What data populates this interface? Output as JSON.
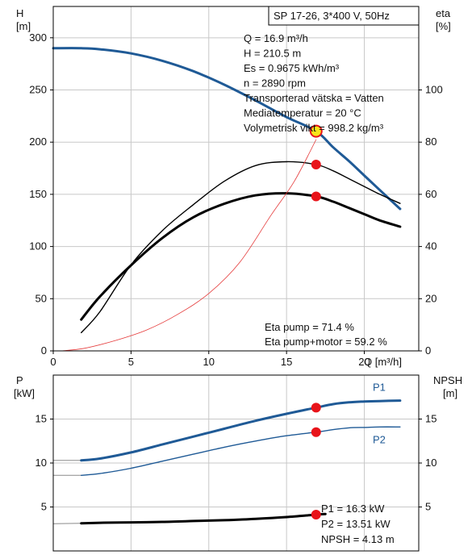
{
  "chart_data": [
    {
      "id": "head_efficiency",
      "type": "line",
      "title": "SP 17-26, 3*400 V, 50Hz",
      "xlabel": "Q [m³/h]",
      "ylabel_left": "H",
      "ylabel_left_unit": "[m]",
      "ylabel_right": "eta",
      "ylabel_right_unit": "[%]",
      "xlim": [
        0,
        23.5
      ],
      "ylim_left": [
        0,
        330
      ],
      "ylim_right": [
        0,
        132
      ],
      "x_ticks": [
        0,
        5,
        10,
        15,
        20
      ],
      "y_left_ticks": [
        0,
        50,
        100,
        150,
        200,
        250,
        300
      ],
      "y_right_ticks": [
        0,
        20,
        40,
        60,
        80,
        100
      ],
      "grid": true,
      "series": [
        {
          "axis": "left",
          "color": "#1f5a96",
          "width": 3,
          "x": [
            0,
            1.8,
            3,
            5,
            7,
            9,
            11,
            13,
            15,
            16.9,
            18,
            19,
            20,
            21,
            22.3
          ],
          "values": [
            290,
            290,
            289,
            285,
            278,
            268,
            255,
            240,
            224,
            210.5,
            195,
            182,
            168,
            154,
            136
          ]
        },
        {
          "axis": "right",
          "color": "#000000",
          "width": 1.4,
          "x": [
            1.8,
            3,
            5,
            7,
            9,
            11,
            13,
            15,
            16.9,
            18,
            19,
            20,
            21,
            22.3
          ],
          "values": [
            7,
            15,
            33,
            46,
            56,
            65,
            71,
            72.5,
            71.4,
            69,
            66,
            63,
            60,
            56.5
          ]
        },
        {
          "axis": "left",
          "color": "#000000",
          "width": 3,
          "x": [
            1.8,
            3,
            5,
            7,
            9,
            11,
            13,
            15,
            16.9,
            18,
            19,
            20,
            21,
            22.3
          ],
          "values": [
            30,
            52,
            82,
            108,
            128,
            141,
            149,
            151,
            148,
            143,
            137,
            131,
            125,
            119
          ]
        },
        {
          "axis": "right",
          "color": "#e53b3b",
          "width": 0.8,
          "x": [
            0.5,
            2,
            4,
            6,
            8,
            10,
            12,
            14,
            15.5,
            16.9
          ],
          "values": [
            0,
            1,
            4,
            8,
            14,
            22,
            34,
            52,
            65,
            81
          ]
        }
      ],
      "operating_points": [
        {
          "x": 16.9,
          "axis": "left",
          "value": 210.5,
          "highlight": true
        },
        {
          "x": 16.9,
          "axis": "right",
          "value": 71.4
        },
        {
          "x": 16.9,
          "axis": "left",
          "value": 148
        }
      ]
    },
    {
      "id": "power_npsh",
      "type": "line",
      "xlim": [
        0,
        23.5
      ],
      "ylabel_left": "P",
      "ylabel_left_unit": "[kW]",
      "ylabel_right": "NPSH",
      "ylabel_right_unit": "[m]",
      "ylim_left": [
        0,
        20
      ],
      "ylim_right": [
        0,
        20
      ],
      "y_left_ticks": [
        5,
        10,
        15
      ],
      "y_right_ticks": [
        5,
        10,
        15
      ],
      "grid": true,
      "series": [
        {
          "name": "P1",
          "axis": "left",
          "color": "#1f5a96",
          "width": 3,
          "x": [
            0,
            1.8,
            3,
            5,
            7,
            9,
            11,
            13,
            15,
            16.9,
            18,
            19,
            20,
            21,
            22.3
          ],
          "values": [
            10.3,
            10.3,
            10.5,
            11.2,
            12.1,
            13.0,
            13.9,
            14.8,
            15.6,
            16.3,
            16.7,
            16.9,
            17.0,
            17.05,
            17.1
          ]
        },
        {
          "name": "P2",
          "axis": "left",
          "color": "#1f5a96",
          "width": 1.4,
          "x": [
            0,
            1.8,
            3,
            5,
            7,
            9,
            11,
            13,
            15,
            16.9,
            18,
            19,
            20,
            21,
            22.3
          ],
          "values": [
            8.6,
            8.6,
            8.8,
            9.4,
            10.2,
            11.0,
            11.8,
            12.5,
            13.1,
            13.51,
            13.8,
            14.0,
            14.05,
            14.1,
            14.1
          ]
        },
        {
          "axis": "right",
          "color": "#000000",
          "width": 3,
          "x": [
            0,
            1.8,
            3,
            5,
            7,
            9,
            11,
            13,
            15,
            16.9,
            17.5
          ],
          "values": [
            3.1,
            3.15,
            3.2,
            3.25,
            3.3,
            3.4,
            3.5,
            3.65,
            3.85,
            4.13,
            4.2
          ]
        }
      ],
      "operating_points": [
        {
          "x": 16.9,
          "axis": "left",
          "value": 16.3
        },
        {
          "x": 16.9,
          "axis": "left",
          "value": 13.51
        },
        {
          "x": 16.9,
          "axis": "right",
          "value": 4.13
        }
      ]
    }
  ],
  "info_lines": [
    "Q = 16.9 m³/h",
    "H = 210.5 m",
    "Es = 0.9675 kWh/m³",
    "n = 2890 rpm",
    "Transporterad vätska = Vatten",
    "Mediatemperatur = 20 °C",
    "Volymetrisk vikt = 998.2 kg/m³"
  ],
  "eta_lines": [
    "Eta pump = 71.4 %",
    "Eta pump+motor = 59.2 %"
  ],
  "power_lines": [
    "P1 = 16.3 kW",
    "P2 = 13.51 kW",
    "NPSH = 4.13 m"
  ],
  "colors": {
    "curve_blue": "#1f5a96",
    "marker_red": "#e8141a",
    "marker_highlight": "#f7e61a",
    "grid": "#c8c8c8"
  }
}
